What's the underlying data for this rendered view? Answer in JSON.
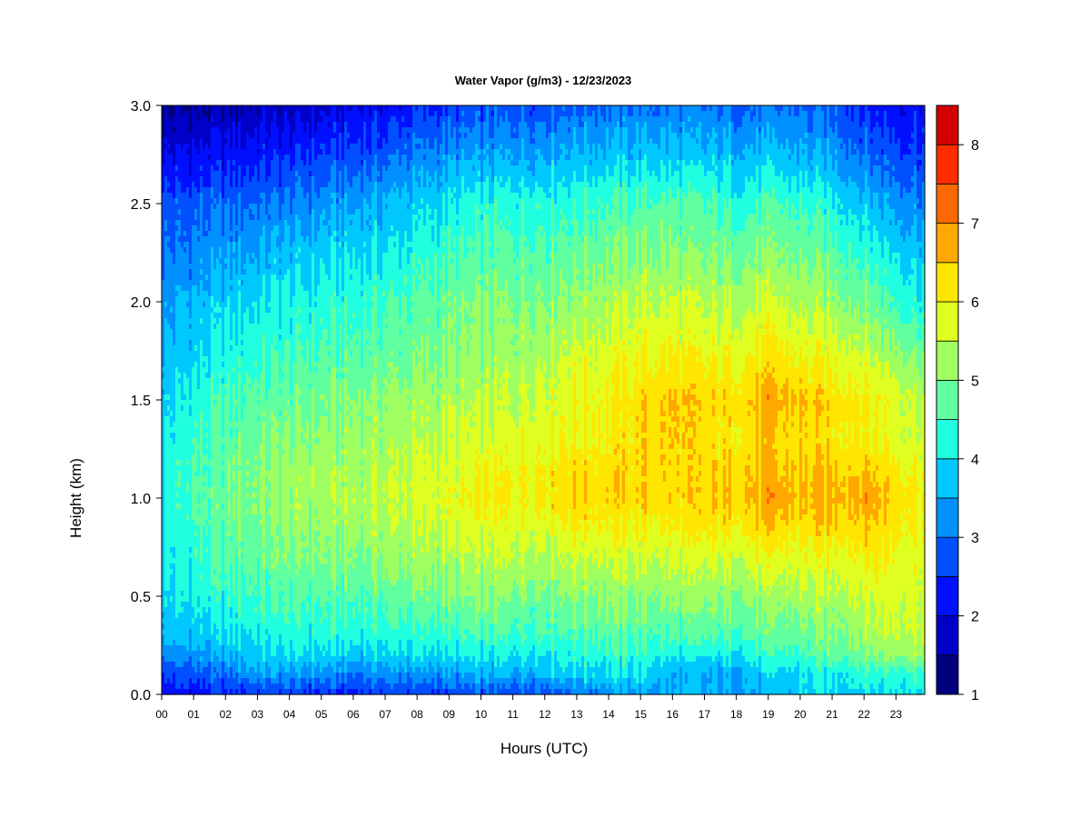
{
  "chart_data": {
    "type": "heatmap",
    "title": "Water Vapor (g/m3) - 12/23/2023",
    "xlabel": "Hours (UTC)",
    "ylabel": "Height (km)",
    "x_ticks": [
      "00",
      "01",
      "02",
      "03",
      "04",
      "05",
      "06",
      "07",
      "08",
      "09",
      "10",
      "11",
      "12",
      "13",
      "14",
      "15",
      "16",
      "17",
      "18",
      "19",
      "20",
      "21",
      "22",
      "23"
    ],
    "xlim": [
      0,
      23.9
    ],
    "y_ticks": [
      "0.0",
      "0.5",
      "1.0",
      "1.5",
      "2.0",
      "2.5",
      "3.0"
    ],
    "ylim": [
      0,
      3.0
    ],
    "colorbar": {
      "ticks": [
        "1",
        "2",
        "3",
        "4",
        "5",
        "6",
        "7",
        "8"
      ],
      "range": [
        1,
        8.5
      ],
      "levels": [
        1,
        1.5,
        2,
        2.5,
        3,
        3.5,
        4,
        4.5,
        5,
        5.5,
        6,
        6.5,
        7,
        7.5,
        8,
        8.5
      ],
      "colors": [
        "#00007f",
        "#0000c8",
        "#0010ff",
        "#0050ff",
        "#0090ff",
        "#00c8ff",
        "#20ffdf",
        "#60ff9f",
        "#a0ff60",
        "#dfff20",
        "#ffe600",
        "#ffa800",
        "#ff6800",
        "#ff2c00",
        "#d40000",
        "#800000"
      ]
    },
    "height_km": [
      0.0,
      0.1,
      0.2,
      0.3,
      0.5,
      0.7,
      0.9,
      1.0,
      1.1,
      1.3,
      1.5,
      1.7,
      2.0,
      2.2,
      2.5,
      2.7,
      3.0
    ],
    "hours": [
      0,
      1,
      2,
      3,
      4,
      5,
      6,
      7,
      8,
      9,
      10,
      11,
      12,
      13,
      14,
      15,
      16,
      17,
      18,
      19,
      20,
      21,
      22,
      23,
      23.9
    ],
    "water_vapor_gm3": [
      [
        2.2,
        2.2,
        2.3,
        2.5,
        2.5,
        2.4,
        2.3,
        2.6,
        2.5,
        2.6,
        2.7,
        2.7,
        2.8,
        3.0,
        3.2,
        3.4,
        3.5,
        3.5,
        3.5,
        3.6,
        3.8,
        3.9,
        4.0,
        4.1,
        4.2
      ],
      [
        2.6,
        2.7,
        2.9,
        3.4,
        3.3,
        3.2,
        3.0,
        3.3,
        3.2,
        3.3,
        3.4,
        3.5,
        3.7,
        3.9,
        4.0,
        4.0,
        3.5,
        3.4,
        3.5,
        3.8,
        4.0,
        4.2,
        4.3,
        4.3,
        4.4
      ],
      [
        3.2,
        3.3,
        3.5,
        3.9,
        3.9,
        3.9,
        3.8,
        3.9,
        3.9,
        4.0,
        4.0,
        4.1,
        4.2,
        4.3,
        4.3,
        4.3,
        4.1,
        4.0,
        4.1,
        4.3,
        4.5,
        4.7,
        5.0,
        5.2,
        5.3
      ],
      [
        3.6,
        3.7,
        3.9,
        4.1,
        4.2,
        4.2,
        4.2,
        4.3,
        4.3,
        4.4,
        4.5,
        4.5,
        4.6,
        4.6,
        4.7,
        4.6,
        4.5,
        4.5,
        4.6,
        4.7,
        4.8,
        5.0,
        5.3,
        5.6,
        5.6
      ],
      [
        3.9,
        4.1,
        4.3,
        4.5,
        4.6,
        4.6,
        4.6,
        4.7,
        4.8,
        4.9,
        5.0,
        5.0,
        5.0,
        5.1,
        5.1,
        5.1,
        5.1,
        5.1,
        5.1,
        5.2,
        5.3,
        5.4,
        5.6,
        5.8,
        5.6
      ],
      [
        4.0,
        4.3,
        4.6,
        4.8,
        4.9,
        5.0,
        5.0,
        5.1,
        5.2,
        5.3,
        5.4,
        5.5,
        5.5,
        5.6,
        5.6,
        5.6,
        5.6,
        5.6,
        5.7,
        5.8,
        5.8,
        5.9,
        6.1,
        6.0,
        5.8
      ],
      [
        4.1,
        4.5,
        4.8,
        5.0,
        5.1,
        5.2,
        5.3,
        5.4,
        5.5,
        5.7,
        5.8,
        5.9,
        6.0,
        6.2,
        6.1,
        6.1,
        6.1,
        6.2,
        6.3,
        6.5,
        6.4,
        6.5,
        6.6,
        6.3,
        6.0
      ],
      [
        4.1,
        4.5,
        4.8,
        5.1,
        5.2,
        5.3,
        5.4,
        5.5,
        5.6,
        5.8,
        6.0,
        6.1,
        6.2,
        6.4,
        6.3,
        6.4,
        6.3,
        6.4,
        6.5,
        6.8,
        6.6,
        6.7,
        6.8,
        6.4,
        6.1
      ],
      [
        4.1,
        4.5,
        4.8,
        5.0,
        5.2,
        5.3,
        5.3,
        5.4,
        5.6,
        5.7,
        5.9,
        6.0,
        6.2,
        6.4,
        6.3,
        6.3,
        6.3,
        6.3,
        6.4,
        6.6,
        6.5,
        6.6,
        6.6,
        6.3,
        6.0
      ],
      [
        4.0,
        4.4,
        4.7,
        4.9,
        5.0,
        5.1,
        5.2,
        5.3,
        5.4,
        5.5,
        5.6,
        5.8,
        5.9,
        6.0,
        6.1,
        6.3,
        6.4,
        6.2,
        6.2,
        6.4,
        6.3,
        6.2,
        6.1,
        5.8,
        5.6
      ],
      [
        3.8,
        4.2,
        4.5,
        4.7,
        4.8,
        4.9,
        5.0,
        5.1,
        5.2,
        5.3,
        5.4,
        5.5,
        5.7,
        6.0,
        6.0,
        6.3,
        6.5,
        6.3,
        6.3,
        6.7,
        6.5,
        6.3,
        6.2,
        5.8,
        5.5
      ],
      [
        3.6,
        3.9,
        4.2,
        4.4,
        4.5,
        4.6,
        4.7,
        4.8,
        4.9,
        5.0,
        5.1,
        5.3,
        5.5,
        5.7,
        5.8,
        6.0,
        6.1,
        5.9,
        6.0,
        6.2,
        6.0,
        5.9,
        5.7,
        5.3,
        5.0
      ],
      [
        3.3,
        3.6,
        3.8,
        4.0,
        4.1,
        4.2,
        4.3,
        4.5,
        4.6,
        4.8,
        4.9,
        5.0,
        5.1,
        5.2,
        5.3,
        5.5,
        5.5,
        5.4,
        5.4,
        5.5,
        5.4,
        5.2,
        4.9,
        4.5,
        4.2
      ],
      [
        3.0,
        3.2,
        3.4,
        3.6,
        3.8,
        3.9,
        4.0,
        4.1,
        4.3,
        4.5,
        4.6,
        4.7,
        4.8,
        4.9,
        5.0,
        5.1,
        5.1,
        5.0,
        5.0,
        5.1,
        5.0,
        4.8,
        4.5,
        4.1,
        3.9
      ],
      [
        2.7,
        2.8,
        2.9,
        3.0,
        3.1,
        3.3,
        3.4,
        3.6,
        3.8,
        4.0,
        4.2,
        4.3,
        4.4,
        4.4,
        4.5,
        4.6,
        4.6,
        4.5,
        4.4,
        4.5,
        4.4,
        4.2,
        3.8,
        3.4,
        3.2
      ],
      [
        2.1,
        2.2,
        2.3,
        2.4,
        2.5,
        2.7,
        2.8,
        3.0,
        3.2,
        3.4,
        3.5,
        3.6,
        3.7,
        3.8,
        3.8,
        3.9,
        3.9,
        3.8,
        3.8,
        3.8,
        3.7,
        3.5,
        3.1,
        2.8,
        2.7
      ],
      [
        1.3,
        1.4,
        1.5,
        1.6,
        1.7,
        1.8,
        2.0,
        2.1,
        2.3,
        2.5,
        2.6,
        2.7,
        2.8,
        2.9,
        3.0,
        3.0,
        3.0,
        3.0,
        2.9,
        2.9,
        2.9,
        2.8,
        2.4,
        2.2,
        2.2
      ]
    ]
  }
}
